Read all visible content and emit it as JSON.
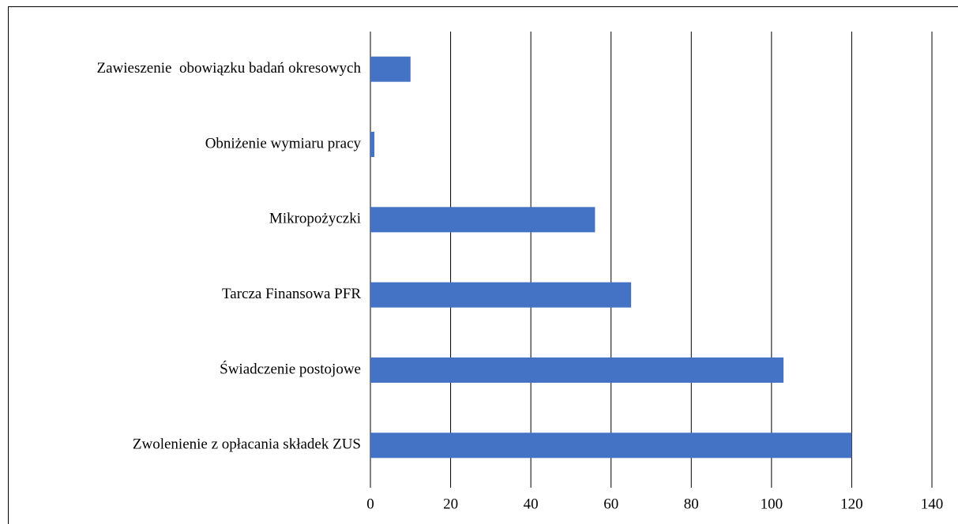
{
  "chart_data": {
    "type": "barh",
    "categories": [
      "Zawieszenie  obowiązku badań okresowych",
      "Obniżenie wymiaru pracy",
      "Mikropożyczki",
      "Tarcza Finansowa PFR",
      "Świadczenie postojowe",
      "Zwolenienie z opłacania składek ZUS"
    ],
    "values": [
      10,
      1,
      56,
      65,
      103,
      120
    ],
    "color": "#4472c4",
    "xlim": [
      0,
      140
    ],
    "xticks": [
      0,
      20,
      40,
      60,
      80,
      100,
      120,
      140
    ],
    "grid": true
  }
}
